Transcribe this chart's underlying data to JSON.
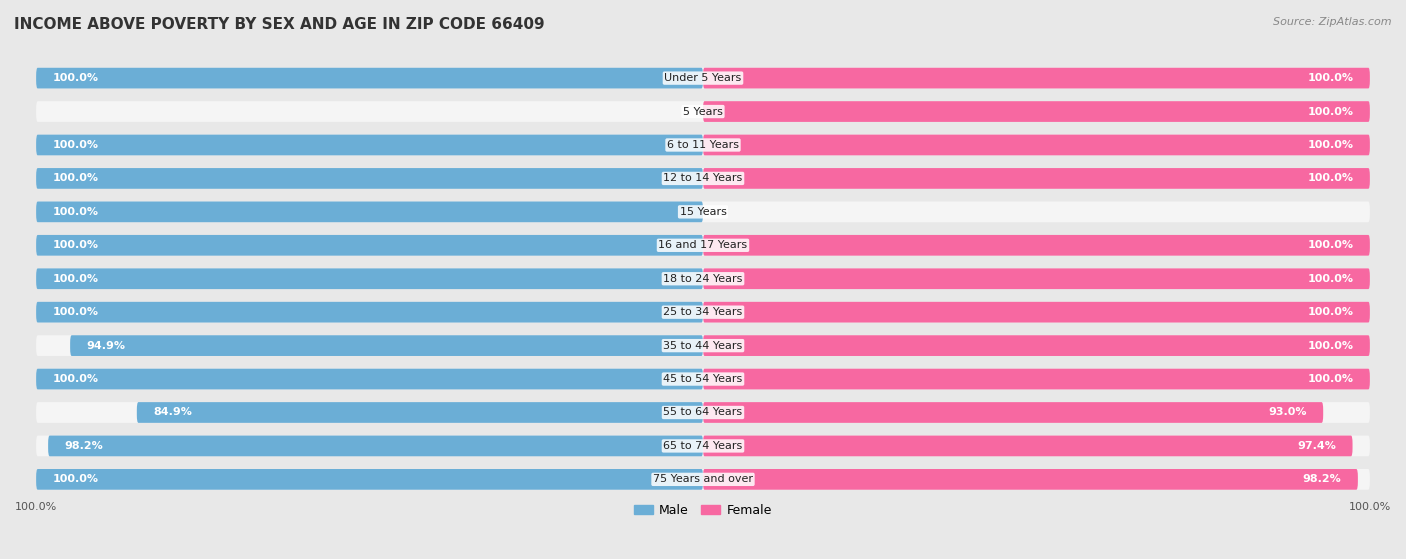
{
  "title": "INCOME ABOVE POVERTY BY SEX AND AGE IN ZIP CODE 66409",
  "source": "Source: ZipAtlas.com",
  "categories": [
    "Under 5 Years",
    "5 Years",
    "6 to 11 Years",
    "12 to 14 Years",
    "15 Years",
    "16 and 17 Years",
    "18 to 24 Years",
    "25 to 34 Years",
    "35 to 44 Years",
    "45 to 54 Years",
    "55 to 64 Years",
    "65 to 74 Years",
    "75 Years and over"
  ],
  "male_values": [
    100.0,
    0.0,
    100.0,
    100.0,
    100.0,
    100.0,
    100.0,
    100.0,
    94.9,
    100.0,
    84.9,
    98.2,
    100.0
  ],
  "female_values": [
    100.0,
    100.0,
    100.0,
    100.0,
    0.0,
    100.0,
    100.0,
    100.0,
    100.0,
    100.0,
    93.0,
    97.4,
    98.2
  ],
  "male_color": "#6baed6",
  "female_color": "#f768a1",
  "male_label": "Male",
  "female_label": "Female",
  "background_color": "#e8e8e8",
  "bar_background_color": "#f5f5f5",
  "title_fontsize": 11,
  "source_fontsize": 8,
  "label_fontsize": 8,
  "category_fontsize": 8,
  "xlim": 100
}
